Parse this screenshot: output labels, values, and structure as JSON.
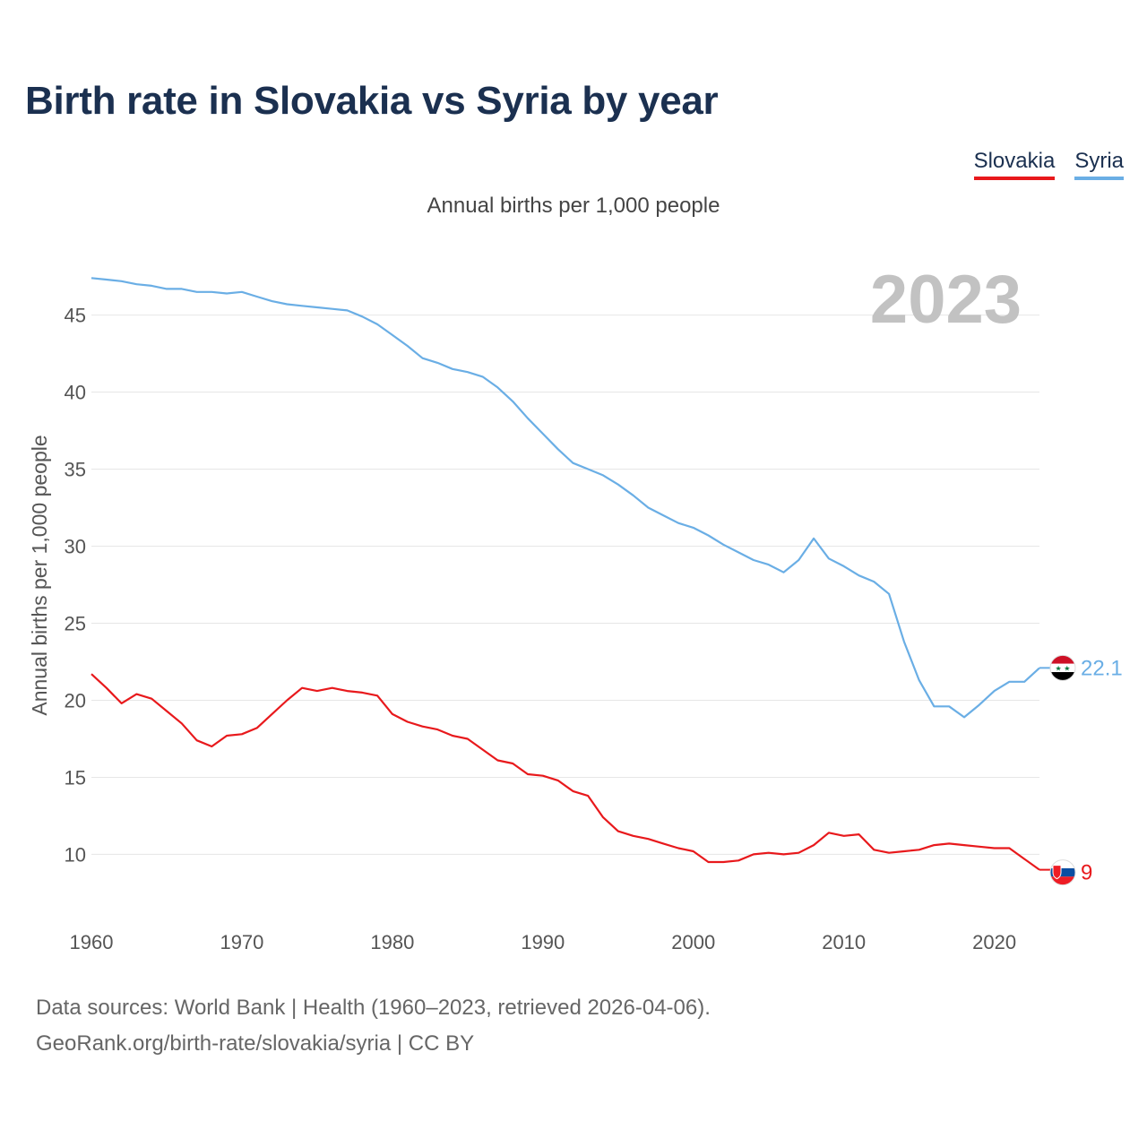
{
  "header": {
    "title": "Birth rate in Slovakia vs Syria by year",
    "subtitle": "Annual births per 1,000 people"
  },
  "legend": [
    {
      "name": "Slovakia",
      "color": "#e8191c"
    },
    {
      "name": "Syria",
      "color": "#6aaee5"
    }
  ],
  "footer": {
    "line1": "Data sources: World Bank | Health (1960–2023, retrieved 2026-04-06).",
    "line2": "GeoRank.org/birth-rate/slovakia/syria | CC BY"
  },
  "chart_data": {
    "type": "line",
    "title": "Birth rate in Slovakia vs Syria by year",
    "xlabel": "",
    "ylabel": "Annual births per 1,000 people",
    "year_label": "2023",
    "xlim": [
      1960,
      2023
    ],
    "ylim": [
      7,
      48
    ],
    "x_ticks": [
      1960,
      1970,
      1980,
      1990,
      2000,
      2010,
      2020
    ],
    "y_ticks": [
      10,
      15,
      20,
      25,
      30,
      35,
      40,
      45
    ],
    "grid": true,
    "legend_position": "top-right",
    "x": [
      1960,
      1961,
      1962,
      1963,
      1964,
      1965,
      1966,
      1967,
      1968,
      1969,
      1970,
      1971,
      1972,
      1973,
      1974,
      1975,
      1976,
      1977,
      1978,
      1979,
      1980,
      1981,
      1982,
      1983,
      1984,
      1985,
      1986,
      1987,
      1988,
      1989,
      1990,
      1991,
      1992,
      1993,
      1994,
      1995,
      1996,
      1997,
      1998,
      1999,
      2000,
      2001,
      2002,
      2003,
      2004,
      2005,
      2006,
      2007,
      2008,
      2009,
      2010,
      2011,
      2012,
      2013,
      2014,
      2015,
      2016,
      2017,
      2018,
      2019,
      2020,
      2021,
      2022,
      2023
    ],
    "series": [
      {
        "name": "Slovakia",
        "color": "#e8191c",
        "end_label": "9",
        "flag": "slovakia-flag",
        "values": [
          21.7,
          20.8,
          19.8,
          20.4,
          20.1,
          19.3,
          18.5,
          17.4,
          17.0,
          17.7,
          17.8,
          18.2,
          19.1,
          20.0,
          20.8,
          20.6,
          20.8,
          20.6,
          20.5,
          20.3,
          19.1,
          18.6,
          18.3,
          18.1,
          17.7,
          17.5,
          16.8,
          16.1,
          15.9,
          15.2,
          15.1,
          14.8,
          14.1,
          13.8,
          12.4,
          11.5,
          11.2,
          11.0,
          10.7,
          10.4,
          10.2,
          9.5,
          9.5,
          9.6,
          10.0,
          10.1,
          10.0,
          10.1,
          10.6,
          11.4,
          11.2,
          11.3,
          10.3,
          10.1,
          10.2,
          10.3,
          10.6,
          10.7,
          10.6,
          10.5,
          10.4,
          10.4,
          9.7,
          9.0
        ]
      },
      {
        "name": "Syria",
        "color": "#6aaee5",
        "end_label": "22.1",
        "flag": "syria-flag",
        "values": [
          47.4,
          47.3,
          47.2,
          47.0,
          46.9,
          46.7,
          46.7,
          46.5,
          46.5,
          46.4,
          46.5,
          46.2,
          45.9,
          45.7,
          45.6,
          45.5,
          45.4,
          45.3,
          44.9,
          44.4,
          43.7,
          43.0,
          42.2,
          41.9,
          41.5,
          41.3,
          41.0,
          40.3,
          39.4,
          38.3,
          37.3,
          36.3,
          35.4,
          35.0,
          34.6,
          34.0,
          33.3,
          32.5,
          32.0,
          31.5,
          31.2,
          30.7,
          30.1,
          29.6,
          29.1,
          28.8,
          28.3,
          29.1,
          30.5,
          29.2,
          28.7,
          28.1,
          27.7,
          26.9,
          23.8,
          21.3,
          19.6,
          19.6,
          18.9,
          19.7,
          20.6,
          21.2,
          21.2,
          22.1
        ]
      }
    ]
  }
}
